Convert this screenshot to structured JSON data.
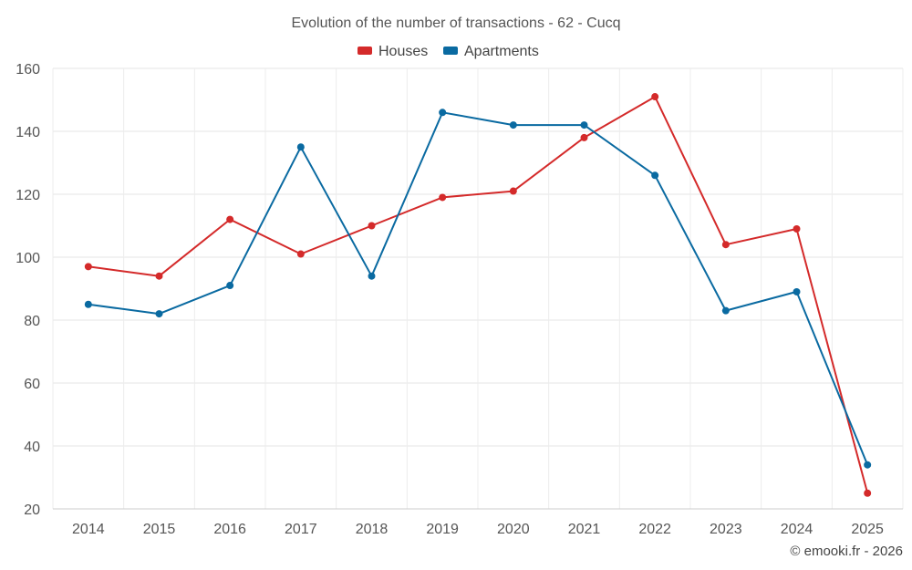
{
  "chart_data": {
    "type": "line",
    "title": "Evolution of the number of transactions - 62 - Cucq",
    "categories": [
      "2014",
      "2015",
      "2016",
      "2017",
      "2018",
      "2019",
      "2020",
      "2021",
      "2022",
      "2023",
      "2024",
      "2025"
    ],
    "ylim": [
      20,
      160
    ],
    "yticks": [
      20,
      40,
      60,
      80,
      100,
      120,
      140,
      160
    ],
    "grid": true,
    "legend_position": "top-center",
    "series": [
      {
        "name": "Houses",
        "color": "#d42a2a",
        "values": [
          97,
          94,
          112,
          101,
          110,
          119,
          121,
          138,
          151,
          104,
          109,
          25
        ]
      },
      {
        "name": "Apartments",
        "color": "#0a6aa1",
        "values": [
          85,
          82,
          91,
          135,
          94,
          146,
          142,
          142,
          126,
          83,
          89,
          34
        ]
      }
    ]
  },
  "credit": "© emooki.fr - 2026"
}
